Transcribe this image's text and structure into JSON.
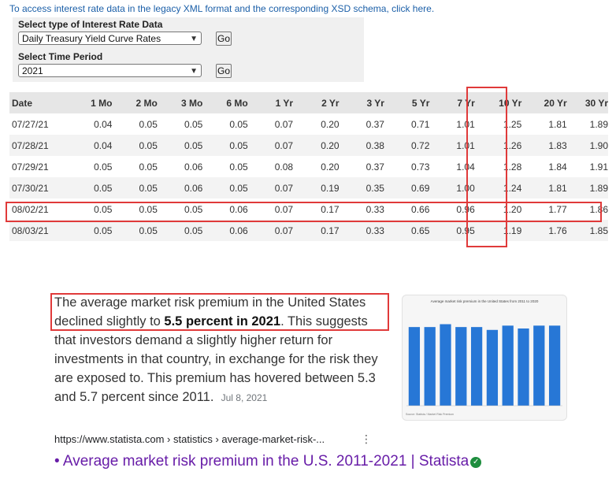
{
  "xml_notice": "To access interest rate data in the legacy XML format and the corresponding XSD schema, click here.",
  "filters": {
    "type_label": "Select type of Interest Rate Data",
    "type_value": "Daily Treasury Yield Curve Rates",
    "period_label": "Select Time Period",
    "period_value": "2021",
    "go_label": "Go"
  },
  "rates_table": {
    "headers": [
      "Date",
      "1 Mo",
      "2 Mo",
      "3 Mo",
      "6 Mo",
      "1 Yr",
      "2 Yr",
      "3 Yr",
      "5 Yr",
      "7 Yr",
      "10 Yr",
      "20 Yr",
      "30 Yr"
    ],
    "rows": [
      [
        "07/27/21",
        "0.04",
        "0.05",
        "0.05",
        "0.05",
        "0.07",
        "0.20",
        "0.37",
        "0.71",
        "1.01",
        "1.25",
        "1.81",
        "1.89"
      ],
      [
        "07/28/21",
        "0.04",
        "0.05",
        "0.05",
        "0.05",
        "0.07",
        "0.20",
        "0.38",
        "0.72",
        "1.01",
        "1.26",
        "1.83",
        "1.90"
      ],
      [
        "07/29/21",
        "0.05",
        "0.05",
        "0.06",
        "0.05",
        "0.08",
        "0.20",
        "0.37",
        "0.73",
        "1.04",
        "1.28",
        "1.84",
        "1.91"
      ],
      [
        "07/30/21",
        "0.05",
        "0.05",
        "0.06",
        "0.05",
        "0.07",
        "0.19",
        "0.35",
        "0.69",
        "1.00",
        "1.24",
        "1.81",
        "1.89"
      ],
      [
        "08/02/21",
        "0.05",
        "0.05",
        "0.05",
        "0.06",
        "0.07",
        "0.17",
        "0.33",
        "0.66",
        "0.96",
        "1.20",
        "1.77",
        "1.86"
      ],
      [
        "08/03/21",
        "0.05",
        "0.05",
        "0.05",
        "0.06",
        "0.07",
        "0.17",
        "0.33",
        "0.65",
        "0.95",
        "1.19",
        "1.76",
        "1.85"
      ]
    ],
    "highlighted_row": "08/02/21",
    "highlighted_column": "10 Yr"
  },
  "search_result": {
    "snippet_pre": "The average market risk premium in the United States declined slightly to ",
    "snippet_bold": "5.5 percent in 2021",
    "snippet_post": ". This suggests that investors demand a slightly higher return for investments in that country, in exchange for the risk they are exposed to. This premium has hovered between 5.3 and 5.7 percent since 2011.",
    "snippet_date": "Jul 8, 2021",
    "cite": "https://www.statista.com › statistics › average-market-risk-...",
    "title": "• Average market risk premium in the U.S. 2011-2021 | Statista",
    "thumbnail": {
      "title": "Average market risk premium in the United States from 2011 to 2020",
      "note": "Source: Statista / Market Risk Premium",
      "bar_color": "#2777d6"
    }
  },
  "chart_data": {
    "type": "bar",
    "title": "Average market risk premium in the United States from 2011 to 2020",
    "categories": [
      "",
      "",
      "",
      "",
      "",
      "",
      "",
      "",
      "",
      ""
    ],
    "values": [
      5.5,
      5.5,
      5.7,
      5.5,
      5.5,
      5.3,
      5.6,
      5.4,
      5.6,
      5.6
    ],
    "ylim": [
      0,
      6.5
    ]
  },
  "colors": {
    "highlight": "#e03a3a",
    "link": "#1b5fa8",
    "visited_title": "#681da8",
    "verified": "#1e8e3e"
  }
}
